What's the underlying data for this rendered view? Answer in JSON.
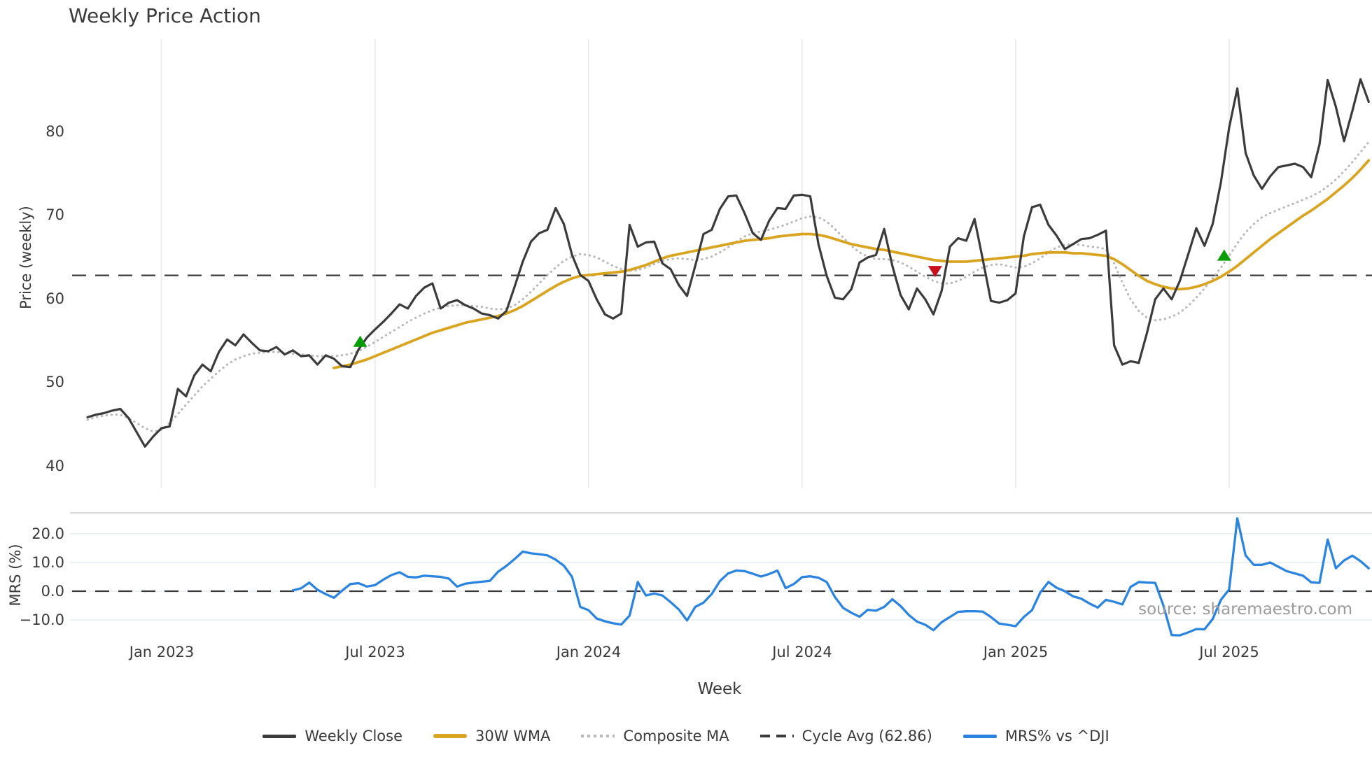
{
  "title": "Weekly Price Action",
  "source_note": "source: sharemaestro.com",
  "colors": {
    "weekly_close": "#3b3b3b",
    "wma_30w": "#d9a420",
    "composite_ma": "#b8b8b8",
    "cycle_avg": "#3a3a3a",
    "mrs": "#2b84e0",
    "buy_marker": "#089c08",
    "sell_marker": "#cb0e1d",
    "grid": "#e8e8e8",
    "mrs_grid": "#e8edf0",
    "mrs_top_spine": "#c9ced2",
    "text": "#3a3a3a",
    "muted_text": "#9b9b9b"
  },
  "chart_data": {
    "type": "line",
    "title": "Weekly Price Action",
    "xlabel": "Week",
    "x_tick_labels": [
      "Jan 2023",
      "Jul 2023",
      "Jan 2024",
      "Jul 2024",
      "Jan 2025",
      "Jul 2025"
    ],
    "x_tick_weeks": [
      9,
      35,
      61,
      87,
      113,
      139
    ],
    "legend": [
      {
        "label": "Weekly Close",
        "style": "solid-dark"
      },
      {
        "label": "30W WMA",
        "style": "solid-gold"
      },
      {
        "label": "Composite MA",
        "style": "dotted-gray"
      },
      {
        "label": "Cycle Avg (62.86)",
        "style": "dashed-dark"
      },
      {
        "label": "MRS% vs ^DJI",
        "style": "solid-blue"
      }
    ],
    "price_panel": {
      "ylabel": "Price (weekly)",
      "ylim": [
        39.5,
        88.5
      ],
      "ytick_values": [
        80,
        70,
        60,
        50,
        40
      ],
      "ytick_labels": [
        "80",
        "70",
        "60",
        "50",
        "40"
      ],
      "cycle_avg": 62.86,
      "grid": "vertical-only",
      "series": {
        "weekly_close": {
          "start_week": 0,
          "values": [
            45.9,
            46.2,
            46.4,
            46.7,
            46.9,
            45.8,
            44.1,
            42.4,
            43.6,
            44.6,
            44.8,
            49.3,
            48.4,
            50.9,
            52.2,
            51.4,
            53.7,
            55.2,
            54.5,
            55.8,
            54.8,
            53.9,
            53.8,
            54.3,
            53.4,
            53.9,
            53.2,
            53.3,
            52.2,
            53.3,
            52.9,
            52.0,
            51.9,
            54.0,
            55.4,
            56.4,
            57.3,
            58.3,
            59.4,
            58.9,
            60.4,
            61.4,
            61.9,
            58.9,
            59.6,
            59.9,
            59.3,
            58.9,
            58.3,
            58.1,
            57.7,
            58.6,
            61.5,
            64.5,
            66.9,
            67.9,
            68.3,
            70.9,
            69.0,
            65.3,
            62.9,
            62.2,
            60.0,
            58.2,
            57.7,
            58.3,
            68.9,
            66.3,
            66.8,
            66.9,
            64.3,
            63.6,
            61.7,
            60.4,
            64.0,
            67.8,
            68.3,
            70.8,
            72.3,
            72.4,
            70.3,
            67.9,
            67.1,
            69.4,
            70.9,
            70.8,
            72.4,
            72.5,
            72.3,
            66.6,
            62.8,
            60.2,
            60.0,
            61.2,
            64.4,
            65.0,
            65.3,
            68.4,
            64.0,
            60.5,
            58.8,
            61.3,
            60.0,
            58.2,
            61.0,
            66.3,
            67.3,
            67.0,
            69.6,
            64.8,
            59.8,
            59.6,
            59.9,
            60.7,
            67.5,
            71.0,
            71.3,
            68.9,
            67.6,
            66.0,
            66.6,
            67.2,
            67.3,
            67.7,
            68.2,
            54.5,
            52.2,
            52.6,
            52.4,
            56.0,
            60.0,
            61.3,
            60.0,
            62.2,
            65.3,
            68.5,
            66.4,
            69.0,
            74.0,
            80.5,
            85.2,
            77.5,
            74.8,
            73.2,
            74.7,
            75.8,
            76.0,
            76.2,
            75.8,
            74.6,
            78.5,
            86.2,
            83.0,
            78.9,
            82.5,
            86.3,
            83.6
          ]
        },
        "wma_30w": {
          "start_week": 30,
          "values": [
            51.8,
            52.0,
            52.2,
            52.5,
            52.8,
            53.2,
            53.6,
            54.0,
            54.4,
            54.8,
            55.2,
            55.6,
            56.0,
            56.3,
            56.6,
            56.9,
            57.2,
            57.4,
            57.6,
            57.8,
            58.0,
            58.3,
            58.7,
            59.2,
            59.8,
            60.4,
            61.0,
            61.6,
            62.1,
            62.5,
            62.8,
            62.9,
            63.0,
            63.1,
            63.2,
            63.3,
            63.5,
            63.8,
            64.1,
            64.5,
            64.9,
            65.2,
            65.4,
            65.6,
            65.8,
            66.0,
            66.2,
            66.4,
            66.6,
            66.8,
            67.0,
            67.1,
            67.2,
            67.3,
            67.5,
            67.6,
            67.7,
            67.8,
            67.8,
            67.7,
            67.5,
            67.2,
            66.9,
            66.6,
            66.4,
            66.2,
            66.0,
            65.9,
            65.7,
            65.5,
            65.3,
            65.1,
            64.9,
            64.7,
            64.6,
            64.5,
            64.5,
            64.5,
            64.6,
            64.7,
            64.8,
            64.9,
            65.0,
            65.1,
            65.2,
            65.4,
            65.5,
            65.6,
            65.6,
            65.6,
            65.5,
            65.5,
            65.4,
            65.3,
            65.2,
            64.8,
            64.2,
            63.5,
            62.8,
            62.2,
            61.8,
            61.5,
            61.3,
            61.2,
            61.3,
            61.5,
            61.8,
            62.2,
            62.7,
            63.3,
            64.0,
            64.8,
            65.6,
            66.4,
            67.2,
            67.9,
            68.6,
            69.3,
            70.0,
            70.6,
            71.3,
            72.0,
            72.8,
            73.6,
            74.5,
            75.5,
            76.6
          ]
        },
        "composite_ma": {
          "start_week": 0,
          "values": [
            45.6,
            45.9,
            46.1,
            46.2,
            46.2,
            45.8,
            45.2,
            44.6,
            44.2,
            44.4,
            45.2,
            46.3,
            47.4,
            48.5,
            49.6,
            50.5,
            51.4,
            52.2,
            52.8,
            53.2,
            53.5,
            53.6,
            53.7,
            53.7,
            53.6,
            53.5,
            53.4,
            53.3,
            53.2,
            53.2,
            53.2,
            53.3,
            53.5,
            53.8,
            54.3,
            54.9,
            55.5,
            56.1,
            56.7,
            57.3,
            57.8,
            58.3,
            58.7,
            59.0,
            59.2,
            59.3,
            59.3,
            59.2,
            59.1,
            58.9,
            58.8,
            58.9,
            59.3,
            60.0,
            60.9,
            61.9,
            62.9,
            63.8,
            64.6,
            65.1,
            65.4,
            65.3,
            65.0,
            64.5,
            64.0,
            63.6,
            63.4,
            63.5,
            63.8,
            64.2,
            64.6,
            64.8,
            64.9,
            64.8,
            64.7,
            64.8,
            65.1,
            65.6,
            66.2,
            66.9,
            67.5,
            67.9,
            68.1,
            68.3,
            68.6,
            68.9,
            69.3,
            69.7,
            69.9,
            69.8,
            69.3,
            68.4,
            67.4,
            66.4,
            65.6,
            65.1,
            64.8,
            64.8,
            64.7,
            64.4,
            63.9,
            63.3,
            62.7,
            62.2,
            61.9,
            61.9,
            62.2,
            62.7,
            63.3,
            63.8,
            64.1,
            64.2,
            64.0,
            63.8,
            63.9,
            64.3,
            64.9,
            65.6,
            66.2,
            66.5,
            66.6,
            66.5,
            66.3,
            66.2,
            66.0,
            64.3,
            62.0,
            60.0,
            58.6,
            57.8,
            57.5,
            57.6,
            57.9,
            58.4,
            59.2,
            60.2,
            61.3,
            62.5,
            63.8,
            65.2,
            66.7,
            68.0,
            69.0,
            69.8,
            70.3,
            70.7,
            71.1,
            71.5,
            71.9,
            72.3,
            72.8,
            73.5,
            74.3,
            75.3,
            76.4,
            77.6,
            78.8
          ]
        }
      },
      "markers": {
        "buy_signals": [
          {
            "week": 33.2,
            "price": 54.9
          },
          {
            "week": 138.4,
            "price": 65.2
          }
        ],
        "sell_signals": [
          {
            "week": 103.2,
            "price": 63.4
          }
        ]
      }
    },
    "mrs_panel": {
      "ylabel": "MRS (%)",
      "ylim": [
        -17,
        28
      ],
      "ytick_values": [
        20,
        10,
        0,
        -10
      ],
      "ytick_labels": [
        "20.0",
        "10.0",
        "0.0",
        "−10.0"
      ],
      "zero_line": 0.0,
      "series": {
        "mrs_vs_dji": {
          "start_week": 25,
          "values": [
            0.3,
            1.0,
            3.0,
            0.5,
            -1.0,
            -2.3,
            0.2,
            2.5,
            2.8,
            1.6,
            2.1,
            4.0,
            5.6,
            6.6,
            5.0,
            4.8,
            5.4,
            5.2,
            5.0,
            4.4,
            1.6,
            2.6,
            3.0,
            3.3,
            3.6,
            6.8,
            8.8,
            11.2,
            13.8,
            13.2,
            12.9,
            12.5,
            11.0,
            8.9,
            5.0,
            -5.5,
            -6.6,
            -9.5,
            -10.5,
            -11.2,
            -11.6,
            -8.5,
            3.2,
            -1.5,
            -0.8,
            -1.5,
            -3.8,
            -6.4,
            -10.2,
            -5.5,
            -4.0,
            -1.0,
            3.5,
            6.2,
            7.2,
            7.0,
            6.1,
            5.1,
            6.0,
            7.2,
            1.1,
            2.5,
            4.9,
            5.2,
            4.7,
            3.2,
            -2.0,
            -5.8,
            -7.5,
            -8.9,
            -6.5,
            -6.8,
            -5.5,
            -2.8,
            -5.2,
            -8.3,
            -10.6,
            -11.7,
            -13.6,
            -10.8,
            -9.0,
            -7.2,
            -7.0,
            -7.0,
            -7.1,
            -9.0,
            -11.3,
            -11.7,
            -12.2,
            -9.0,
            -6.6,
            -0.5,
            3.2,
            1.2,
            0.0,
            -1.8,
            -2.6,
            -4.3,
            -5.7,
            -3.0,
            -3.7,
            -4.6,
            1.5,
            3.2,
            3.0,
            2.9,
            -5.0,
            -15.3,
            -15.4,
            -14.4,
            -13.2,
            -13.3,
            -9.7,
            -3.0,
            0.6,
            25.4,
            12.5,
            9.2,
            9.2,
            10.0,
            8.5,
            7.0,
            6.2,
            5.4,
            3.1,
            2.9,
            18.0,
            8.0,
            10.7,
            12.4,
            10.5,
            8.0
          ]
        }
      }
    }
  }
}
